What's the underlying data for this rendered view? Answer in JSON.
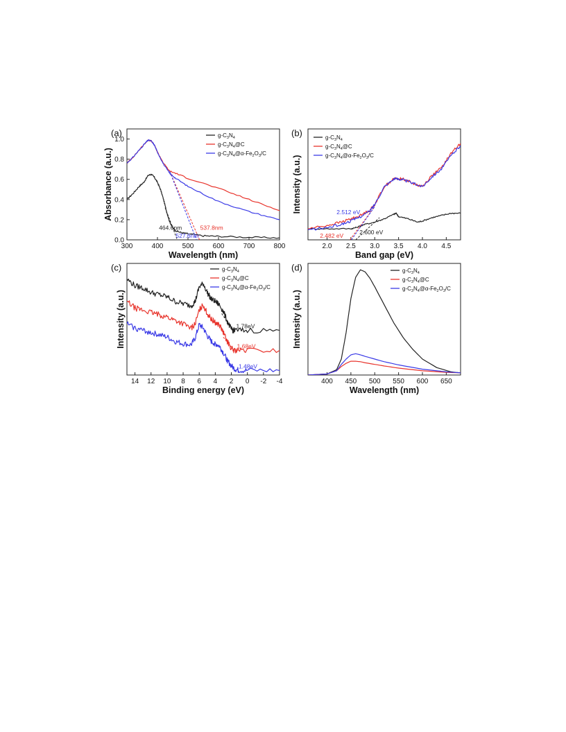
{
  "colors": {
    "black": "#222222",
    "red": "#e8332b",
    "blue": "#3a3ae6"
  },
  "legend_labels": [
    "g-C3N4",
    "g-C3N4@C",
    "g-C3N4@α-Fe2O3/C"
  ],
  "chart_data": [
    {
      "id": "a",
      "panel_label": "(a)",
      "type": "line",
      "xlabel": "Wavelength (nm)",
      "ylabel": "Absorbance (a.u.)",
      "xlim": [
        300,
        800
      ],
      "ylim": [
        0,
        1.1
      ],
      "xticks": [
        300,
        400,
        500,
        600,
        700,
        800
      ],
      "xtick_labels": [
        "300",
        "400",
        "500",
        "600",
        "700",
        "800"
      ],
      "yticks": [
        0.0,
        0.2,
        0.4,
        0.6,
        0.8,
        1.0
      ],
      "ytick_labels": [
        "0.0",
        "0.2",
        "0.4",
        "0.6",
        "0.8",
        "1.0"
      ],
      "legend_position": "top-right",
      "series": [
        {
          "name": "g-C3N4",
          "color": "black",
          "noise": 0.008,
          "x": [
            300,
            320,
            340,
            355,
            370,
            380,
            390,
            400,
            410,
            420,
            430,
            440,
            450,
            460,
            480,
            500,
            550,
            600,
            700,
            800
          ],
          "y": [
            0.4,
            0.46,
            0.53,
            0.57,
            0.64,
            0.65,
            0.62,
            0.57,
            0.5,
            0.4,
            0.28,
            0.18,
            0.12,
            0.09,
            0.07,
            0.06,
            0.04,
            0.035,
            0.025,
            0.02
          ]
        },
        {
          "name": "g-C3N4@C",
          "color": "red",
          "noise": 0.006,
          "x": [
            300,
            320,
            340,
            360,
            370,
            380,
            390,
            400,
            420,
            440,
            460,
            500,
            600,
            700,
            800
          ],
          "y": [
            0.76,
            0.82,
            0.89,
            0.96,
            0.99,
            0.98,
            0.94,
            0.87,
            0.76,
            0.68,
            0.66,
            0.61,
            0.51,
            0.4,
            0.29
          ]
        },
        {
          "name": "g-C3N4@α-Fe2O3/C",
          "color": "blue",
          "noise": 0.006,
          "x": [
            300,
            320,
            340,
            360,
            370,
            380,
            390,
            400,
            420,
            440,
            460,
            500,
            600,
            700,
            800
          ],
          "y": [
            0.76,
            0.82,
            0.89,
            0.96,
            0.99,
            0.98,
            0.94,
            0.87,
            0.75,
            0.66,
            0.61,
            0.53,
            0.38,
            0.28,
            0.2
          ]
        }
      ],
      "guides": [
        {
          "color": "black",
          "points": [
            [
              425,
              0.32
            ],
            [
              465,
              0.0
            ]
          ]
        },
        {
          "color": "red",
          "points": [
            [
              440,
              0.68
            ],
            [
              538,
              0.0
            ]
          ]
        },
        {
          "color": "blue",
          "points": [
            [
              440,
              0.68
            ],
            [
              528,
              0.0
            ]
          ]
        }
      ],
      "annotations": [
        {
          "text": "464.6nm",
          "x": 405,
          "y": 0.1,
          "color": "black"
        },
        {
          "text": "537.8nm",
          "x": 540,
          "y": 0.1,
          "color": "red"
        },
        {
          "text": "527.6nm",
          "x": 460,
          "y": 0.02,
          "color": "blue"
        }
      ]
    },
    {
      "id": "b",
      "panel_label": "(b)",
      "type": "line",
      "xlabel": "Band gap (eV)",
      "ylabel": "Intensity (a.u.)",
      "xlim": [
        1.6,
        4.8
      ],
      "ylim": [
        0,
        1.0
      ],
      "xticks": [
        2.0,
        2.5,
        3.0,
        3.5,
        4.0,
        4.5
      ],
      "xtick_labels": [
        "2.0",
        "2.5",
        "3.0",
        "3.5",
        "4.0",
        "4.5"
      ],
      "yticks": [],
      "ytick_labels": [],
      "legend_position": "top-left",
      "series": [
        {
          "name": "g-C3N4",
          "color": "black",
          "noise": 0.006,
          "x": [
            1.6,
            2.0,
            2.5,
            2.6,
            2.8,
            3.0,
            3.2,
            3.4,
            3.45,
            3.5,
            3.7,
            3.9,
            4.0,
            4.2,
            4.4,
            4.6,
            4.8
          ],
          "y": [
            0.1,
            0.1,
            0.1,
            0.11,
            0.14,
            0.16,
            0.19,
            0.23,
            0.24,
            0.21,
            0.19,
            0.16,
            0.17,
            0.2,
            0.22,
            0.24,
            0.24
          ]
        },
        {
          "name": "g-C3N4@C",
          "color": "red",
          "noise": 0.012,
          "x": [
            1.6,
            2.0,
            2.3,
            2.5,
            2.7,
            2.9,
            3.0,
            3.2,
            3.4,
            3.5,
            3.6,
            3.8,
            4.0,
            4.2,
            4.4,
            4.6,
            4.8
          ],
          "y": [
            0.1,
            0.13,
            0.16,
            0.19,
            0.22,
            0.27,
            0.32,
            0.48,
            0.55,
            0.55,
            0.55,
            0.51,
            0.48,
            0.58,
            0.65,
            0.78,
            0.87
          ]
        },
        {
          "name": "g-C3N4@α-Fe2O3/C",
          "color": "blue",
          "noise": 0.012,
          "x": [
            1.6,
            2.0,
            2.3,
            2.5,
            2.7,
            2.9,
            3.0,
            3.2,
            3.4,
            3.5,
            3.6,
            3.8,
            4.0,
            4.2,
            4.4,
            4.6,
            4.8
          ],
          "y": [
            0.09,
            0.11,
            0.14,
            0.17,
            0.21,
            0.26,
            0.32,
            0.48,
            0.55,
            0.55,
            0.54,
            0.51,
            0.48,
            0.57,
            0.64,
            0.76,
            0.85
          ]
        }
      ],
      "guides": [
        {
          "color": "black",
          "points": [
            [
              2.6,
              0.0
            ],
            [
              3.1,
              0.2
            ]
          ]
        },
        {
          "color": "red",
          "points": [
            [
              2.48,
              0.0
            ],
            [
              3.0,
              0.3
            ]
          ]
        },
        {
          "color": "blue",
          "points": [
            [
              2.51,
              0.0
            ],
            [
              3.0,
              0.3
            ]
          ]
        }
      ],
      "annotations": [
        {
          "text": "2.512 eV",
          "x": 2.2,
          "y": 0.23,
          "color": "blue"
        },
        {
          "text": "2.482 eV",
          "x": 1.85,
          "y": 0.02,
          "color": "red"
        },
        {
          "text": "2.600 eV",
          "x": 2.68,
          "y": 0.05,
          "color": "black"
        }
      ]
    },
    {
      "id": "c",
      "panel_label": "(c)",
      "type": "line",
      "xlabel": "Binding energy (eV)",
      "ylabel": "Intensity (a.u.)",
      "xlim": [
        15,
        -4
      ],
      "ylim": [
        0,
        1.0
      ],
      "xticks": [
        14,
        12,
        10,
        8,
        6,
        4,
        2,
        0,
        -2,
        -4
      ],
      "xtick_labels": [
        "14",
        "12",
        "10",
        "8",
        "6",
        "4",
        "2",
        "0",
        "-2",
        "-4"
      ],
      "yticks": [],
      "ytick_labels": [],
      "legend_position": "top-right",
      "series": [
        {
          "name": "g-C3N4",
          "color": "black",
          "noise": 0.025,
          "x": [
            15,
            14,
            13,
            12,
            11,
            10,
            9,
            8,
            7,
            6.5,
            6,
            5.5,
            5,
            4.5,
            4,
            3.5,
            3,
            2.5,
            2,
            1.8,
            1.5,
            0,
            -4
          ],
          "y": [
            0.86,
            0.8,
            0.78,
            0.74,
            0.72,
            0.7,
            0.66,
            0.64,
            0.62,
            0.66,
            0.79,
            0.82,
            0.74,
            0.68,
            0.66,
            0.63,
            0.57,
            0.48,
            0.41,
            0.4,
            0.4,
            0.4,
            0.4
          ]
        },
        {
          "name": "g-C3N4@C",
          "color": "red",
          "noise": 0.025,
          "x": [
            15,
            14,
            13,
            12,
            11,
            10,
            9,
            8,
            7,
            6.5,
            6,
            5.5,
            5,
            4.5,
            4,
            3.5,
            3,
            2.5,
            2,
            1.7,
            1.2,
            0,
            -4
          ],
          "y": [
            0.66,
            0.6,
            0.58,
            0.56,
            0.54,
            0.52,
            0.49,
            0.46,
            0.42,
            0.46,
            0.58,
            0.63,
            0.55,
            0.5,
            0.47,
            0.45,
            0.38,
            0.3,
            0.24,
            0.22,
            0.22,
            0.22,
            0.22
          ]
        },
        {
          "name": "g-C3N4@α-Fe2O3/C",
          "color": "blue",
          "noise": 0.025,
          "x": [
            15,
            14,
            13,
            12,
            11,
            10,
            9,
            8,
            7,
            6.5,
            6,
            5.5,
            5,
            4.5,
            4,
            3.5,
            3,
            2.5,
            2,
            1.5,
            1,
            0,
            -4
          ],
          "y": [
            0.46,
            0.42,
            0.4,
            0.38,
            0.36,
            0.34,
            0.3,
            0.28,
            0.27,
            0.33,
            0.45,
            0.42,
            0.35,
            0.3,
            0.28,
            0.26,
            0.2,
            0.13,
            0.08,
            0.05,
            0.04,
            0.04,
            0.04
          ]
        }
      ],
      "guides": [
        {
          "color": "black",
          "points": [
            [
              3.2,
              0.55
            ],
            [
              1.78,
              0.4
            ]
          ]
        },
        {
          "color": "red",
          "points": [
            [
              3.0,
              0.34
            ],
            [
              1.68,
              0.22
            ]
          ]
        },
        {
          "color": "blue",
          "points": [
            [
              2.6,
              0.14
            ],
            [
              1.48,
              0.04
            ]
          ]
        }
      ],
      "annotations": [
        {
          "text": "1.78eV",
          "x": 1.4,
          "y": 0.42,
          "color": "black"
        },
        {
          "text": "1.68eV",
          "x": 1.3,
          "y": 0.24,
          "color": "red"
        },
        {
          "text": "1.48eV",
          "x": 1.1,
          "y": 0.06,
          "color": "blue"
        }
      ]
    },
    {
      "id": "d",
      "panel_label": "(d)",
      "type": "line",
      "xlabel": "Wavelength (nm)",
      "ylabel": "Intensity (a.u.)",
      "xlim": [
        360,
        680
      ],
      "ylim": [
        0,
        1.05
      ],
      "xticks": [
        400,
        450,
        500,
        550,
        600,
        650
      ],
      "xtick_labels": [
        "400",
        "450",
        "500",
        "550",
        "600",
        "650"
      ],
      "yticks": [],
      "ytick_labels": [],
      "legend_position": "top-right",
      "series": [
        {
          "name": "g-C3N4",
          "color": "black",
          "noise": 0,
          "x": [
            360,
            400,
            420,
            430,
            440,
            450,
            460,
            470,
            480,
            490,
            500,
            520,
            540,
            560,
            580,
            600,
            630,
            660,
            680
          ],
          "y": [
            0.0,
            0.01,
            0.05,
            0.15,
            0.4,
            0.72,
            0.92,
            0.99,
            0.97,
            0.91,
            0.83,
            0.66,
            0.49,
            0.35,
            0.24,
            0.15,
            0.07,
            0.03,
            0.02
          ]
        },
        {
          "name": "g-C3N4@C",
          "color": "red",
          "noise": 0,
          "x": [
            360,
            400,
            420,
            430,
            440,
            450,
            460,
            470,
            480,
            500,
            520,
            550,
            600,
            650,
            680
          ],
          "y": [
            0.0,
            0.01,
            0.04,
            0.08,
            0.11,
            0.13,
            0.13,
            0.125,
            0.115,
            0.1,
            0.085,
            0.065,
            0.04,
            0.025,
            0.02
          ]
        },
        {
          "name": "g-C3N4@α-Fe2O3/C",
          "color": "blue",
          "noise": 0,
          "x": [
            360,
            400,
            420,
            430,
            440,
            450,
            460,
            470,
            480,
            500,
            520,
            550,
            600,
            650,
            680
          ],
          "y": [
            0.0,
            0.01,
            0.04,
            0.1,
            0.15,
            0.19,
            0.2,
            0.19,
            0.175,
            0.15,
            0.125,
            0.095,
            0.055,
            0.03,
            0.02
          ]
        }
      ],
      "guides": [],
      "annotations": []
    }
  ]
}
